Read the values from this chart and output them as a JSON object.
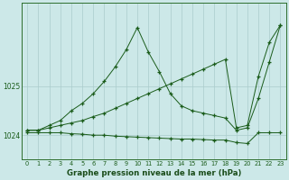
{
  "bg_color": "#cce8e8",
  "grid_color": "#aacccc",
  "line_color": "#1a5c1a",
  "title": "Graphe pression niveau de la mer (hPa)",
  "xticks": [
    0,
    1,
    2,
    3,
    4,
    5,
    6,
    7,
    8,
    9,
    10,
    11,
    12,
    13,
    14,
    15,
    16,
    17,
    18,
    19,
    20,
    21,
    22,
    23
  ],
  "yticks": [
    1024,
    1025
  ],
  "ylim": [
    1023.5,
    1026.7
  ],
  "xlim": [
    -0.5,
    23.5
  ],
  "s1x": [
    0,
    1,
    2,
    3,
    4,
    5,
    6,
    7,
    8,
    9,
    10,
    11,
    12,
    13,
    14,
    15,
    16,
    17,
    18,
    19,
    20,
    21,
    22,
    23
  ],
  "s1y": [
    1024.1,
    1024.1,
    1024.2,
    1024.3,
    1024.5,
    1024.65,
    1024.85,
    1025.1,
    1025.4,
    1025.75,
    1026.2,
    1025.7,
    1025.3,
    1024.85,
    1024.6,
    1024.5,
    1024.45,
    1024.4,
    1024.35,
    1024.1,
    1024.15,
    1024.75,
    1025.5,
    1026.25
  ],
  "s2x": [
    0,
    1,
    2,
    3,
    4,
    5,
    6,
    7,
    8,
    9,
    10,
    11,
    12,
    13,
    14,
    15,
    16,
    17,
    18,
    19,
    20,
    21,
    22,
    23
  ],
  "s2y": [
    1024.1,
    1024.1,
    1024.15,
    1024.2,
    1024.25,
    1024.3,
    1024.38,
    1024.45,
    1024.55,
    1024.65,
    1024.75,
    1024.85,
    1024.95,
    1025.05,
    1025.15,
    1025.25,
    1025.35,
    1025.45,
    1025.55,
    1024.15,
    1024.2,
    1025.2,
    1025.9,
    1026.25
  ],
  "s3x": [
    0,
    1,
    2,
    3,
    4,
    5,
    6,
    7,
    8,
    9,
    10,
    11,
    12,
    13,
    14,
    15,
    16,
    17,
    18,
    19,
    20,
    21,
    22,
    23
  ],
  "s3y": [
    1024.05,
    1024.05,
    1024.05,
    1024.05,
    1024.03,
    1024.02,
    1024.0,
    1024.0,
    1023.98,
    1023.97,
    1023.96,
    1023.95,
    1023.94,
    1023.93,
    1023.92,
    1023.92,
    1023.91,
    1023.9,
    1023.9,
    1023.85,
    1023.83,
    1024.05,
    1024.05,
    1024.05
  ]
}
